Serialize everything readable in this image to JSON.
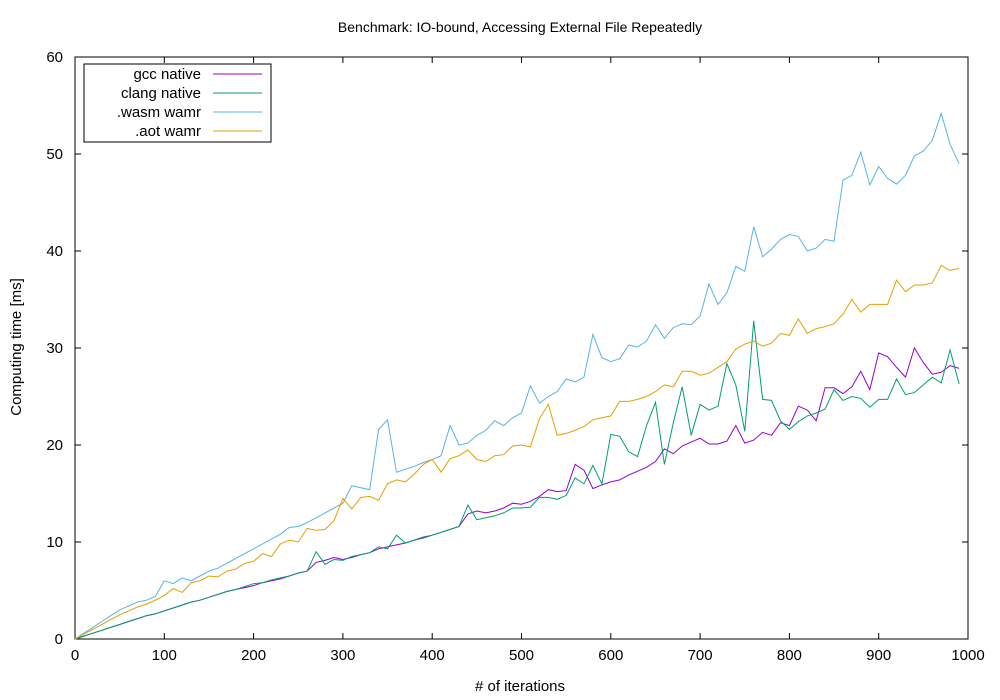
{
  "chart_data": {
    "type": "line",
    "title": "Benchmark: IO-bound, Accessing External File Repeatedly",
    "xlabel": "# of iterations",
    "ylabel": "Computing time [ms]",
    "xlim": [
      0,
      1000
    ],
    "ylim": [
      0,
      60
    ],
    "xticks": [
      0,
      100,
      200,
      300,
      400,
      500,
      600,
      700,
      800,
      900,
      1000
    ],
    "yticks": [
      0,
      10,
      20,
      30,
      40,
      50,
      60
    ],
    "grid": false,
    "legend_position": "top-left",
    "x": [
      0,
      10,
      20,
      30,
      40,
      50,
      60,
      70,
      80,
      90,
      100,
      110,
      120,
      130,
      140,
      150,
      160,
      170,
      180,
      190,
      200,
      210,
      220,
      230,
      240,
      250,
      260,
      270,
      280,
      290,
      300,
      310,
      320,
      330,
      340,
      350,
      360,
      370,
      380,
      390,
      400,
      410,
      420,
      430,
      440,
      450,
      460,
      470,
      480,
      490,
      500,
      510,
      520,
      530,
      540,
      550,
      560,
      570,
      580,
      590,
      600,
      610,
      620,
      630,
      640,
      650,
      660,
      670,
      680,
      690,
      700,
      710,
      720,
      730,
      740,
      750,
      760,
      770,
      780,
      790,
      800,
      810,
      820,
      830,
      840,
      850,
      860,
      870,
      880,
      890,
      900,
      910,
      920,
      930,
      940,
      950,
      960,
      970,
      980,
      990
    ],
    "series": [
      {
        "name": "gcc native",
        "color": "#9400d3",
        "values": [
          0,
          0.3,
          0.6,
          0.9,
          1.2,
          1.5,
          1.8,
          2.1,
          2.4,
          2.6,
          2.9,
          3.2,
          3.5,
          3.8,
          4.0,
          4.3,
          4.6,
          4.9,
          5.1,
          5.3,
          5.5,
          5.8,
          6.0,
          6.2,
          6.5,
          6.8,
          7.0,
          7.9,
          8.1,
          8.4,
          8.2,
          8.4,
          8.7,
          8.9,
          9.3,
          9.5,
          9.7,
          9.9,
          10.2,
          10.5,
          10.7,
          11.0,
          11.3,
          11.6,
          12.9,
          13.2,
          13.0,
          13.2,
          13.5,
          14.0,
          13.9,
          14.2,
          14.7,
          15.4,
          15.2,
          15.3,
          18.0,
          17.4,
          15.5,
          15.9,
          16.2,
          16.4,
          16.9,
          17.3,
          17.7,
          18.3,
          19.6,
          19.1,
          19.9,
          20.3,
          20.7,
          20.1,
          20.1,
          20.4,
          22.0,
          20.2,
          20.5,
          21.3,
          21.0,
          22.3,
          22.0,
          24.0,
          23.6,
          22.5,
          25.9,
          25.9,
          25.3,
          26.0,
          27.6,
          25.7,
          29.5,
          29.1,
          28.0,
          27.0,
          30.0,
          28.5,
          27.3,
          27.5,
          28.2,
          27.9
        ]
      },
      {
        "name": "clang native",
        "color": "#009e73",
        "values": [
          0,
          0.3,
          0.6,
          0.9,
          1.2,
          1.5,
          1.8,
          2.1,
          2.4,
          2.6,
          2.9,
          3.2,
          3.5,
          3.8,
          4.0,
          4.3,
          4.6,
          4.9,
          5.1,
          5.4,
          5.7,
          5.8,
          6.1,
          6.3,
          6.5,
          6.8,
          7.0,
          9.0,
          7.7,
          8.2,
          8.1,
          8.5,
          8.7,
          8.9,
          9.5,
          9.3,
          10.7,
          9.9,
          10.2,
          10.4,
          10.7,
          11.0,
          11.3,
          11.6,
          13.8,
          12.3,
          12.5,
          12.7,
          13.0,
          13.5,
          13.5,
          13.6,
          14.6,
          14.6,
          14.4,
          14.8,
          16.6,
          16.0,
          17.9,
          16.0,
          21.1,
          20.9,
          19.3,
          18.8,
          22.0,
          24.4,
          18.0,
          22.3,
          26.0,
          21.0,
          24.2,
          23.6,
          24.0,
          28.4,
          26.2,
          21.4,
          32.8,
          24.7,
          24.6,
          22.5,
          21.6,
          22.4,
          23.0,
          23.3,
          23.7,
          25.7,
          24.6,
          25.0,
          24.8,
          23.9,
          24.7,
          24.7,
          26.8,
          25.2,
          25.4,
          26.2,
          27.0,
          26.4,
          29.8,
          26.3
        ]
      },
      {
        "name": ".wasm wamr",
        "color": "#56b4e9",
        "values": [
          0,
          0.6,
          1.2,
          1.8,
          2.4,
          3.0,
          3.4,
          3.8,
          4.0,
          4.4,
          6.0,
          5.7,
          6.3,
          6.0,
          6.5,
          7.0,
          7.3,
          7.8,
          8.3,
          8.8,
          9.3,
          9.8,
          10.3,
          10.8,
          11.5,
          11.6,
          12.0,
          12.5,
          13.0,
          13.5,
          14.0,
          15.8,
          15.6,
          15.4,
          21.6,
          22.6,
          17.2,
          17.5,
          17.8,
          18.2,
          18.5,
          18.9,
          22.0,
          20.0,
          20.2,
          21.0,
          21.5,
          22.5,
          22.0,
          22.8,
          23.3,
          26.1,
          24.3,
          25.0,
          25.5,
          26.8,
          26.5,
          27.0,
          31.4,
          29.0,
          28.6,
          28.9,
          30.3,
          30.1,
          30.7,
          32.4,
          31.0,
          32.1,
          32.5,
          32.4,
          33.3,
          36.6,
          34.5,
          35.7,
          38.4,
          37.9,
          42.5,
          39.4,
          40.2,
          41.2,
          41.7,
          41.5,
          40.0,
          40.3,
          41.2,
          41.0,
          47.3,
          47.8,
          50.2,
          46.8,
          48.7,
          47.5,
          46.9,
          47.8,
          49.8,
          50.3,
          51.4,
          54.2,
          51.0,
          49.0
        ]
      },
      {
        "name": ".aot wamr",
        "color": "#e69f00",
        "values": [
          0,
          0.5,
          1.0,
          1.5,
          2.0,
          2.5,
          2.9,
          3.3,
          3.6,
          4.0,
          4.5,
          5.2,
          4.8,
          5.8,
          6.0,
          6.5,
          6.4,
          7.0,
          7.2,
          7.8,
          8.0,
          8.8,
          8.5,
          9.8,
          10.2,
          10.0,
          11.4,
          11.2,
          11.3,
          12.2,
          14.5,
          13.4,
          14.6,
          14.7,
          14.3,
          16.0,
          16.4,
          16.2,
          17.0,
          18.0,
          18.5,
          17.2,
          18.6,
          18.9,
          19.5,
          18.5,
          18.3,
          18.9,
          19.0,
          19.9,
          20.0,
          19.8,
          22.7,
          24.2,
          21.0,
          21.2,
          21.5,
          21.9,
          22.6,
          22.8,
          23.0,
          24.5,
          24.5,
          24.7,
          25.0,
          25.5,
          26.2,
          26.0,
          27.6,
          27.6,
          27.2,
          27.4,
          28.0,
          28.6,
          29.9,
          30.4,
          30.7,
          30.2,
          30.5,
          31.5,
          31.3,
          33.0,
          31.5,
          32.0,
          32.2,
          32.5,
          33.5,
          35.0,
          33.7,
          34.5,
          34.5,
          34.5,
          37.0,
          35.8,
          36.5,
          36.5,
          36.7,
          38.5,
          38.0,
          38.2
        ]
      }
    ]
  }
}
